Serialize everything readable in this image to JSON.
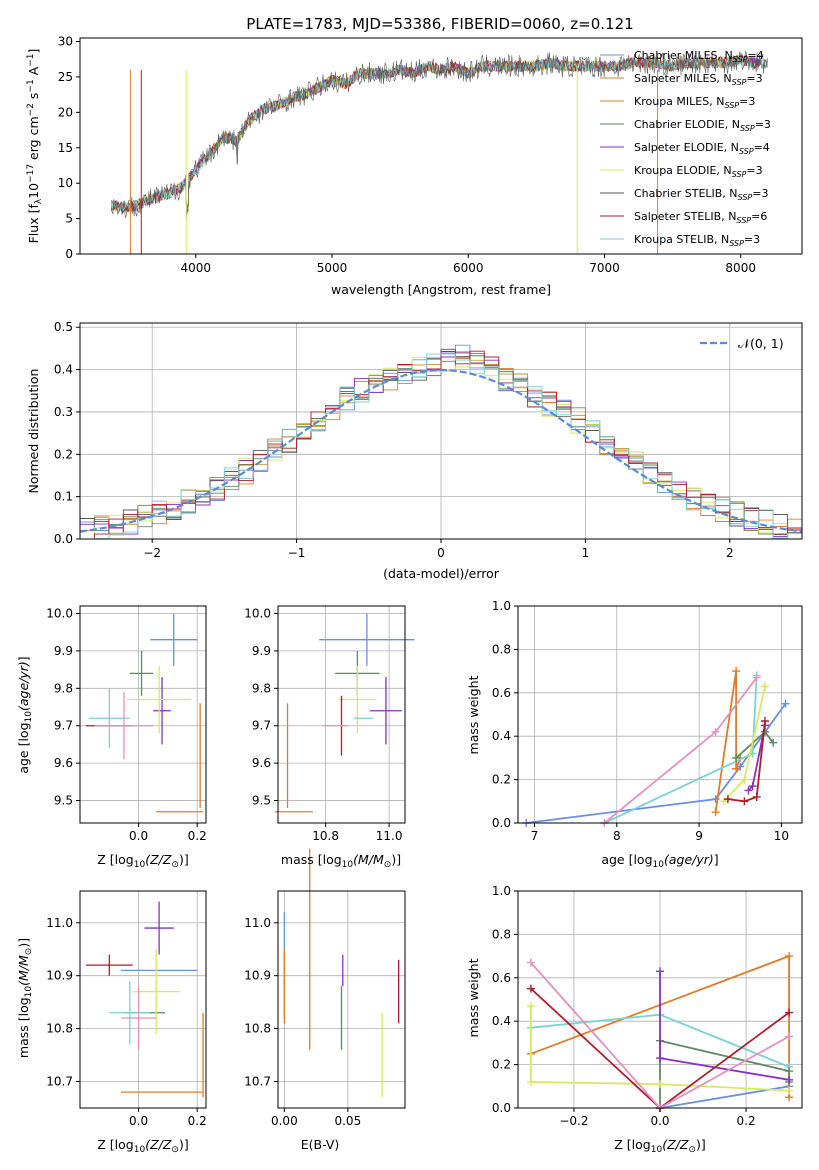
{
  "figure": {
    "title": "PLATE=1783, MJD=53386, FIBERID=0060, z=0.121"
  },
  "models": [
    {
      "name": "Chabrier MILES",
      "nssp": "4",
      "color": "#6a8fe0"
    },
    {
      "name": "Salpeter MILES",
      "nssp": "3",
      "color": "#e07b28"
    },
    {
      "name": "Kroupa MILES",
      "nssp": "3",
      "color": "#b8922e"
    },
    {
      "name": "Chabrier ELODIE",
      "nssp": "3",
      "color": "#5e8a62"
    },
    {
      "name": "Salpeter ELODIE",
      "nssp": "4",
      "color": "#8a2fc0"
    },
    {
      "name": "Kroupa ELODIE",
      "nssp": "3",
      "color": "#d8e860"
    },
    {
      "name": "Chabrier STELIB",
      "nssp": "3",
      "color": "#5a5a5a"
    },
    {
      "name": "Salpeter STELIB",
      "nssp": "6",
      "color": "#b01c2c"
    },
    {
      "name": "Kroupa STELIB",
      "nssp": "3",
      "color": "#7ad2d6"
    }
  ],
  "chart_data": [
    {
      "id": "spectrum",
      "type": "line",
      "title": "PLATE=1783, MJD=53386, FIBERID=0060, z=0.121",
      "xlabel": "wavelength [Angstrom, rest frame]",
      "ylabel": "Flux [f_λ 10^-17 erg cm^-2 s^-1 A^-1]",
      "xlim": [
        3150,
        8450
      ],
      "ylim": [
        0,
        30.5
      ],
      "xticks": [
        4000,
        5000,
        6000,
        7000,
        8000
      ],
      "yticks": [
        0,
        5,
        10,
        15,
        20,
        25,
        30
      ],
      "grid": false,
      "legend": "upper right",
      "x": [
        3400,
        3500,
        3600,
        3700,
        3800,
        3900,
        4000,
        4100,
        4200,
        4300,
        4400,
        4500,
        4600,
        4700,
        4800,
        4900,
        5000,
        5100,
        5200,
        5300,
        5400,
        5500,
        5600,
        5700,
        5800,
        5900,
        6000,
        6100,
        6200,
        6300,
        6400,
        6500,
        6600,
        6700,
        6800,
        6900,
        7000,
        7100,
        7200,
        7300,
        7400,
        7500,
        7600,
        7700,
        7800,
        7900,
        8000,
        8100,
        8200
      ],
      "y": [
        6.8,
        6.5,
        7.2,
        8.0,
        8.5,
        9.5,
        12.0,
        14.0,
        16.5,
        16.0,
        19.0,
        20.5,
        21.0,
        22.0,
        22.5,
        23.5,
        24.5,
        24.0,
        25.5,
        25.5,
        25.5,
        26.0,
        25.5,
        26.5,
        26.0,
        26.5,
        25.5,
        26.5,
        26.5,
        26.5,
        26.5,
        26.5,
        27.0,
        26.5,
        26.5,
        26.5,
        26.5,
        26.5,
        27.0,
        27.0,
        27.0,
        26.5,
        27.0,
        27.0,
        27.0,
        27.0,
        27.5,
        27.0,
        27.0
      ]
    },
    {
      "id": "residuals",
      "type": "histogram",
      "xlabel": "(data-model)/error",
      "ylabel": "Normed distribution",
      "xlim": [
        -2.5,
        2.5
      ],
      "ylim": [
        0,
        0.51
      ],
      "xticks": [
        -2,
        -1,
        0,
        1,
        2
      ],
      "yticks": [
        0.0,
        0.1,
        0.2,
        0.3,
        0.4,
        0.5
      ],
      "grid": true,
      "legend": "upper right",
      "reference_label": "𝒩(0, 1)",
      "bin_edges": [
        -2.5,
        -2.4,
        -2.3,
        -2.2,
        -2.1,
        -2.0,
        -1.9,
        -1.8,
        -1.7,
        -1.6,
        -1.5,
        -1.4,
        -1.3,
        -1.2,
        -1.1,
        -1.0,
        -0.9,
        -0.8,
        -0.7,
        -0.6,
        -0.5,
        -0.4,
        -0.3,
        -0.2,
        -0.1,
        0.0,
        0.1,
        0.2,
        0.3,
        0.4,
        0.5,
        0.6,
        0.7,
        0.8,
        0.9,
        1.0,
        1.1,
        1.2,
        1.3,
        1.4,
        1.5,
        1.6,
        1.7,
        1.8,
        1.9,
        2.0,
        2.1,
        2.2,
        2.3,
        2.4,
        2.5
      ],
      "base_values": [
        0.02,
        0.025,
        0.035,
        0.04,
        0.05,
        0.06,
        0.075,
        0.09,
        0.1,
        0.12,
        0.14,
        0.16,
        0.18,
        0.21,
        0.23,
        0.26,
        0.28,
        0.3,
        0.33,
        0.35,
        0.37,
        0.38,
        0.39,
        0.4,
        0.41,
        0.42,
        0.43,
        0.42,
        0.4,
        0.38,
        0.36,
        0.34,
        0.32,
        0.3,
        0.28,
        0.25,
        0.22,
        0.2,
        0.18,
        0.15,
        0.13,
        0.11,
        0.09,
        0.08,
        0.07,
        0.06,
        0.045,
        0.04,
        0.03,
        0.02
      ]
    },
    {
      "id": "age-vs-z",
      "type": "errorbar",
      "xlabel": "Z [log10(Z/Z⊙)]",
      "ylabel": "age [log10(age/yr)]",
      "xlim": [
        -0.2,
        0.23
      ],
      "ylim": [
        9.44,
        10.02
      ],
      "xticks": [
        0.0,
        0.2
      ],
      "yticks": [
        9.5,
        9.6,
        9.7,
        9.8,
        9.9,
        10.0
      ],
      "grid": true,
      "points": [
        {
          "x": 0.12,
          "xerr": 0.08,
          "y": 9.93,
          "yerr": 0.07
        },
        {
          "x": 0.14,
          "xerr": 0.08,
          "y": 9.47,
          "yerr": 0.0
        },
        {
          "x": 0.21,
          "xerr": 0.0,
          "y": 9.62,
          "yerr": 0.14
        },
        {
          "x": 0.01,
          "xerr": 0.04,
          "y": 9.84,
          "yerr": 0.06
        },
        {
          "x": 0.08,
          "xerr": 0.03,
          "y": 9.74,
          "yerr": 0.09
        },
        {
          "x": 0.07,
          "xerr": 0.11,
          "y": 9.77,
          "yerr": 0.09
        },
        {
          "x": -0.1,
          "xerr": 0.08,
          "y": 9.7,
          "yerr": 0.0
        },
        {
          "x": -0.1,
          "xerr": 0.07,
          "y": 9.72,
          "yerr": 0.08
        },
        {
          "x": -0.05,
          "xerr": 0.1,
          "y": 9.7,
          "yerr": 0.09
        }
      ]
    },
    {
      "id": "age-vs-mass",
      "type": "errorbar",
      "xlabel": "mass [log10(M/M⊙)]",
      "ylabel": "",
      "xlim": [
        10.65,
        11.05
      ],
      "ylim": [
        9.44,
        10.02
      ],
      "xticks": [
        10.8,
        11.0
      ],
      "yticks": [
        9.5,
        9.6,
        9.7,
        9.8,
        9.9,
        10.0
      ],
      "grid": true,
      "points": [
        {
          "x": 10.93,
          "xerr": 0.15,
          "y": 9.93,
          "yerr": 0.07
        },
        {
          "x": 10.7,
          "xerr": 0.06,
          "y": 9.47,
          "yerr": 0.0
        },
        {
          "x": 10.68,
          "xerr": 0.0,
          "y": 9.62,
          "yerr": 0.14
        },
        {
          "x": 10.9,
          "xerr": 0.07,
          "y": 9.84,
          "yerr": 0.06
        },
        {
          "x": 10.99,
          "xerr": 0.05,
          "y": 9.74,
          "yerr": 0.09
        },
        {
          "x": 10.9,
          "xerr": 0.06,
          "y": 9.77,
          "yerr": 0.09
        },
        {
          "x": 10.85,
          "xerr": 0.0,
          "y": 9.7,
          "yerr": 0.08
        },
        {
          "x": 10.92,
          "xerr": 0.03,
          "y": 9.72,
          "yerr": 0.0
        },
        {
          "x": 10.83,
          "xerr": 0.04,
          "y": 9.7,
          "yerr": 0.0
        }
      ]
    },
    {
      "id": "massweight-vs-age",
      "type": "line",
      "xlabel": "age [log10(age/yr)]",
      "ylabel": "mass weight",
      "xlim": [
        6.8,
        10.25
      ],
      "ylim": [
        0.0,
        1.0
      ],
      "xticks": [
        7,
        8,
        9,
        10
      ],
      "yticks": [
        0.0,
        0.2,
        0.4,
        0.6,
        0.8,
        1.0
      ],
      "grid": true,
      "series": [
        {
          "x": [
            6.9,
            9.2,
            9.5,
            10.05
          ],
          "y": [
            0.0,
            0.11,
            0.26,
            0.55
          ]
        },
        {
          "x": [
            9.2,
            9.45,
            9.45,
            9.5
          ],
          "y": [
            0.05,
            0.7,
            0.25,
            0.3
          ]
        },
        {
          "x": [
            7.85,
            9.65,
            9.7
          ],
          "y": [
            0.0,
            0.32,
            0.68
          ]
        },
        {
          "x": [
            9.45,
            9.8,
            9.9
          ],
          "y": [
            0.3,
            0.42,
            0.37
          ]
        },
        {
          "x": [
            9.6,
            9.65,
            9.8
          ],
          "y": [
            0.15,
            0.17,
            0.45
          ]
        },
        {
          "x": [
            9.3,
            9.55,
            9.8
          ],
          "y": [
            0.1,
            0.2,
            0.63
          ]
        },
        {
          "x": [
            9.35,
            9.55,
            9.7,
            9.8
          ],
          "y": [
            0.11,
            0.1,
            0.12,
            0.47
          ]
        },
        {
          "x": [
            7.85,
            9.2,
            9.7
          ],
          "y": [
            0.0,
            0.42,
            0.67
          ]
        }
      ]
    },
    {
      "id": "mass-vs-z",
      "type": "errorbar",
      "xlabel": "Z [log10(Z/Z⊙)]",
      "ylabel": "mass [log10(M/M⊙)]",
      "xlim": [
        -0.2,
        0.23
      ],
      "ylim": [
        10.65,
        11.06
      ],
      "xticks": [
        0.0,
        0.2
      ],
      "yticks": [
        10.7,
        10.8,
        10.9,
        11.0
      ],
      "grid": true,
      "points": [
        {
          "x": 0.07,
          "xerr": 0.13,
          "y": 10.91,
          "yerr": 0.0
        },
        {
          "x": 0.08,
          "xerr": 0.14,
          "y": 10.68,
          "yerr": 0.0
        },
        {
          "x": 0.22,
          "xerr": 0.0,
          "y": 10.75,
          "yerr": 0.08
        },
        {
          "x": 0.02,
          "xerr": 0.07,
          "y": 10.83,
          "yerr": 0.0
        },
        {
          "x": 0.07,
          "xerr": 0.05,
          "y": 10.99,
          "yerr": 0.05
        },
        {
          "x": 0.06,
          "xerr": 0.08,
          "y": 10.87,
          "yerr": 0.08
        },
        {
          "x": -0.1,
          "xerr": 0.08,
          "y": 10.92,
          "yerr": 0.02
        },
        {
          "x": -0.03,
          "xerr": 0.07,
          "y": 10.83,
          "yerr": 0.06
        },
        {
          "x": 0.0,
          "xerr": 0.06,
          "y": 10.82,
          "yerr": 0.06
        }
      ]
    },
    {
      "id": "mass-vs-ebv",
      "type": "errorbar",
      "xlabel": "E(B-V)",
      "ylabel": "",
      "xlim": [
        -0.005,
        0.095
      ],
      "ylim": [
        10.65,
        11.06
      ],
      "xticks": [
        0.0,
        0.05
      ],
      "yticks": [
        10.7,
        10.8,
        10.9,
        11.0
      ],
      "grid": true,
      "points": [
        {
          "x": 0.0,
          "yerr": 0.1,
          "y": 10.92
        },
        {
          "x": 0.0,
          "yerr": 0.07,
          "y": 10.88
        },
        {
          "x": 0.02,
          "yerr": 0.19,
          "y": 10.95
        },
        {
          "x": 0.045,
          "yerr": 0.06,
          "y": 10.82
        },
        {
          "x": 0.046,
          "yerr": 0.03,
          "y": 10.91
        },
        {
          "x": 0.077,
          "yerr": 0.08,
          "y": 10.75
        },
        {
          "x": 0.09,
          "yerr": 0.06,
          "y": 10.87
        }
      ]
    },
    {
      "id": "massweight-vs-z",
      "type": "line",
      "xlabel": "Z [log10(Z/Z⊙)]",
      "ylabel": "mass weight",
      "xlim": [
        -0.33,
        0.33
      ],
      "ylim": [
        0.0,
        1.0
      ],
      "xticks": [
        -0.2,
        0.0,
        0.2
      ],
      "yticks": [
        0.0,
        0.2,
        0.4,
        0.6,
        0.8,
        1.0
      ],
      "grid": true,
      "series": [
        {
          "x": [
            0.0,
            0.3
          ],
          "y": [
            0.0,
            0.1
          ]
        },
        {
          "x": [
            -0.3,
            0.3,
            0.3
          ],
          "y": [
            0.25,
            0.7,
            0.05
          ]
        },
        {
          "x": [
            -0.3,
            0.0,
            0.3
          ],
          "y": [
            0.37,
            0.43,
            0.19
          ]
        },
        {
          "x": [
            0.0,
            0.0,
            0.3,
            0.3
          ],
          "y": [
            0.0,
            0.31,
            0.17,
            0.12
          ]
        },
        {
          "x": [
            0.0,
            0.0,
            0.3
          ],
          "y": [
            0.63,
            0.23,
            0.13
          ]
        },
        {
          "x": [
            -0.3,
            -0.3,
            0.0,
            0.3
          ],
          "y": [
            0.47,
            0.12,
            0.11,
            0.08
          ]
        },
        {
          "x": [
            -0.3,
            0.0,
            0.3
          ],
          "y": [
            0.55,
            0.0,
            0.44
          ]
        },
        {
          "x": [
            -0.3,
            0.0,
            0.3
          ],
          "y": [
            0.67,
            0.0,
            0.33
          ]
        }
      ]
    }
  ]
}
